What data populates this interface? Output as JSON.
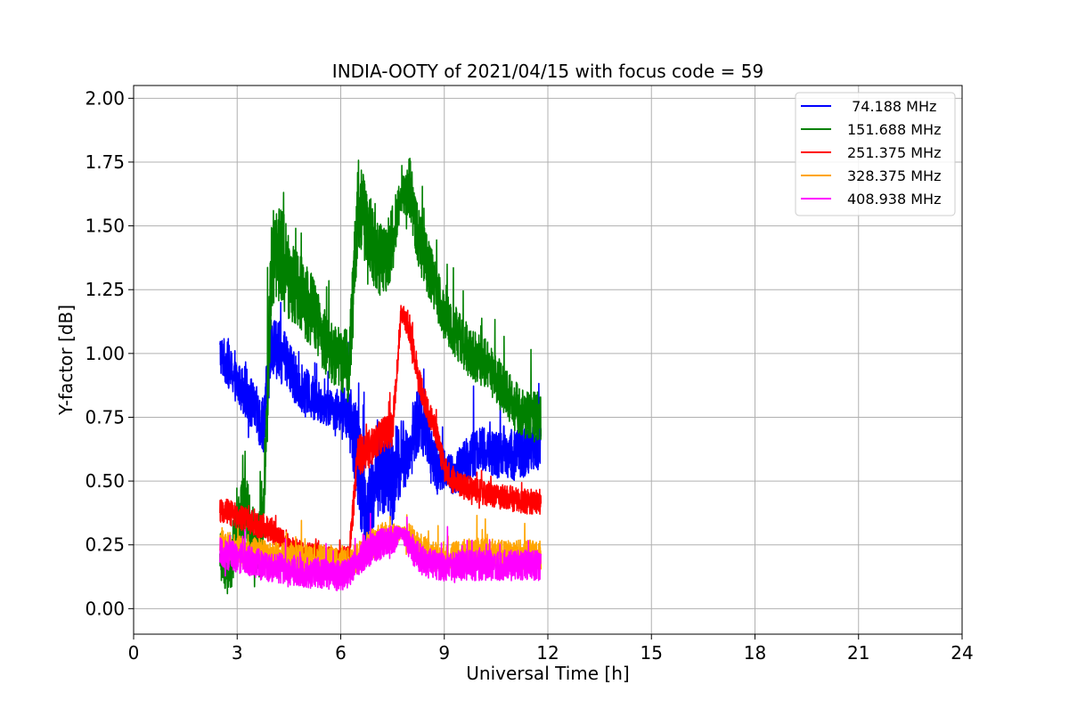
{
  "chart_data": {
    "type": "line",
    "title": "INDIA-OOTY of 2021/04/15 with focus code = 59",
    "xlabel": "Universal Time [h]",
    "ylabel": "Y-factor [dB]",
    "xlim": [
      0,
      24
    ],
    "ylim": [
      -0.1,
      2.05
    ],
    "xticks": [
      0,
      3,
      6,
      9,
      12,
      15,
      18,
      21,
      24
    ],
    "xtick_labels": [
      "0",
      "3",
      "6",
      "9",
      "12",
      "15",
      "18",
      "21",
      "24"
    ],
    "yticks": [
      0.0,
      0.25,
      0.5,
      0.75,
      1.0,
      1.25,
      1.5,
      1.75,
      2.0
    ],
    "ytick_labels": [
      "0.00",
      "0.25",
      "0.50",
      "0.75",
      "1.00",
      "1.25",
      "1.50",
      "1.75",
      "2.00"
    ],
    "grid": true,
    "legend_position": "top-right",
    "series": [
      {
        "name": " 74.188 MHz",
        "color": "#0000ff",
        "x": [
          2.5,
          2.75,
          3.0,
          3.25,
          3.5,
          3.75,
          4.0,
          4.25,
          4.5,
          4.75,
          5.0,
          5.25,
          5.5,
          5.75,
          6.0,
          6.25,
          6.5,
          6.75,
          7.0,
          7.25,
          7.5,
          7.75,
          8.0,
          8.25,
          8.5,
          8.75,
          9.0,
          9.25,
          9.5,
          9.75,
          10.0,
          10.25,
          10.5,
          10.75,
          11.0,
          11.25,
          11.5,
          11.8
        ],
        "y": [
          1.0,
          0.95,
          0.88,
          0.85,
          0.78,
          0.72,
          1.05,
          1.0,
          0.95,
          0.88,
          0.85,
          0.82,
          0.8,
          0.78,
          0.78,
          0.75,
          0.6,
          0.35,
          0.5,
          0.55,
          0.5,
          0.6,
          0.6,
          0.75,
          0.7,
          0.55,
          0.55,
          0.52,
          0.55,
          0.6,
          0.62,
          0.62,
          0.6,
          0.62,
          0.6,
          0.62,
          0.62,
          0.65
        ],
        "amp": [
          0.08,
          0.09,
          0.08,
          0.1,
          0.1,
          0.12,
          0.12,
          0.12,
          0.1,
          0.1,
          0.09,
          0.09,
          0.08,
          0.08,
          0.08,
          0.12,
          0.2,
          0.22,
          0.15,
          0.18,
          0.2,
          0.15,
          0.1,
          0.14,
          0.12,
          0.1,
          0.08,
          0.08,
          0.09,
          0.1,
          0.09,
          0.09,
          0.09,
          0.1,
          0.1,
          0.1,
          0.1,
          0.1
        ]
      },
      {
        "name": "151.688 MHz",
        "color": "#008000",
        "x": [
          2.5,
          2.75,
          3.0,
          3.25,
          3.5,
          3.75,
          4.0,
          4.25,
          4.5,
          4.75,
          5.0,
          5.25,
          5.5,
          5.75,
          6.0,
          6.25,
          6.5,
          6.75,
          7.0,
          7.25,
          7.5,
          7.75,
          8.0,
          8.25,
          8.5,
          8.75,
          9.0,
          9.25,
          9.5,
          9.75,
          10.0,
          10.25,
          10.5,
          10.75,
          11.0,
          11.25,
          11.5,
          11.8
        ],
        "y": [
          0.2,
          0.15,
          0.3,
          0.4,
          0.2,
          0.3,
          1.35,
          1.4,
          1.3,
          1.25,
          1.2,
          1.15,
          1.05,
          1.0,
          0.98,
          0.95,
          1.6,
          1.5,
          1.4,
          1.35,
          1.45,
          1.62,
          1.65,
          1.45,
          1.35,
          1.25,
          1.15,
          1.1,
          1.05,
          1.0,
          0.98,
          0.95,
          0.9,
          0.85,
          0.8,
          0.78,
          0.75,
          0.75
        ],
        "amp": [
          0.1,
          0.12,
          0.15,
          0.15,
          0.12,
          0.15,
          0.2,
          0.2,
          0.18,
          0.16,
          0.15,
          0.14,
          0.13,
          0.12,
          0.12,
          0.15,
          0.18,
          0.16,
          0.15,
          0.14,
          0.14,
          0.06,
          0.12,
          0.12,
          0.12,
          0.1,
          0.1,
          0.1,
          0.1,
          0.1,
          0.1,
          0.1,
          0.1,
          0.1,
          0.1,
          0.1,
          0.1,
          0.1
        ]
      },
      {
        "name": "251.375 MHz",
        "color": "#ff0000",
        "x": [
          2.5,
          2.75,
          3.0,
          3.25,
          3.5,
          3.75,
          4.0,
          4.25,
          4.5,
          4.75,
          5.0,
          5.25,
          5.5,
          5.75,
          6.0,
          6.25,
          6.5,
          6.75,
          7.0,
          7.25,
          7.5,
          7.75,
          8.0,
          8.25,
          8.5,
          8.75,
          9.0,
          9.25,
          9.5,
          9.75,
          10.0,
          10.25,
          10.5,
          10.75,
          11.0,
          11.25,
          11.5,
          11.8
        ],
        "y": [
          0.38,
          0.38,
          0.36,
          0.35,
          0.33,
          0.32,
          0.3,
          0.28,
          0.25,
          0.23,
          0.22,
          0.22,
          0.21,
          0.2,
          0.2,
          0.22,
          0.6,
          0.62,
          0.65,
          0.68,
          0.7,
          1.16,
          1.1,
          0.9,
          0.78,
          0.7,
          0.55,
          0.5,
          0.48,
          0.47,
          0.46,
          0.45,
          0.44,
          0.44,
          0.43,
          0.42,
          0.42,
          0.42
        ],
        "amp": [
          0.05,
          0.05,
          0.05,
          0.05,
          0.05,
          0.05,
          0.05,
          0.04,
          0.04,
          0.04,
          0.04,
          0.04,
          0.04,
          0.04,
          0.04,
          0.05,
          0.08,
          0.08,
          0.07,
          0.07,
          0.07,
          0.04,
          0.06,
          0.06,
          0.05,
          0.05,
          0.05,
          0.05,
          0.05,
          0.05,
          0.05,
          0.05,
          0.05,
          0.05,
          0.05,
          0.05,
          0.05,
          0.05
        ]
      },
      {
        "name": "328.375 MHz",
        "color": "#ffa500",
        "x": [
          2.5,
          2.75,
          3.0,
          3.25,
          3.5,
          3.75,
          4.0,
          4.25,
          4.5,
          4.75,
          5.0,
          5.25,
          5.5,
          5.75,
          6.0,
          6.25,
          6.5,
          6.75,
          7.0,
          7.25,
          7.5,
          7.75,
          8.0,
          8.25,
          8.5,
          8.75,
          9.0,
          9.25,
          9.5,
          9.75,
          10.0,
          10.25,
          10.5,
          10.75,
          11.0,
          11.25,
          11.5,
          11.8
        ],
        "y": [
          0.25,
          0.24,
          0.23,
          0.22,
          0.22,
          0.21,
          0.2,
          0.2,
          0.2,
          0.19,
          0.19,
          0.19,
          0.19,
          0.19,
          0.18,
          0.18,
          0.2,
          0.24,
          0.26,
          0.28,
          0.28,
          0.3,
          0.28,
          0.24,
          0.22,
          0.2,
          0.19,
          0.2,
          0.21,
          0.22,
          0.22,
          0.22,
          0.21,
          0.21,
          0.21,
          0.21,
          0.21,
          0.21
        ],
        "amp": [
          0.06,
          0.06,
          0.06,
          0.06,
          0.06,
          0.06,
          0.06,
          0.06,
          0.06,
          0.06,
          0.06,
          0.06,
          0.06,
          0.06,
          0.06,
          0.06,
          0.06,
          0.06,
          0.06,
          0.06,
          0.06,
          0.02,
          0.06,
          0.06,
          0.06,
          0.06,
          0.06,
          0.06,
          0.06,
          0.06,
          0.06,
          0.06,
          0.06,
          0.06,
          0.06,
          0.06,
          0.06,
          0.06
        ]
      },
      {
        "name": "408.938 MHz",
        "color": "#ff00ff",
        "x": [
          2.5,
          2.75,
          3.0,
          3.25,
          3.5,
          3.75,
          4.0,
          4.25,
          4.5,
          4.75,
          5.0,
          5.25,
          5.5,
          5.75,
          6.0,
          6.25,
          6.5,
          6.75,
          7.0,
          7.25,
          7.5,
          7.75,
          8.0,
          8.25,
          8.5,
          8.75,
          9.0,
          9.25,
          9.5,
          9.75,
          10.0,
          10.25,
          10.5,
          10.75,
          11.0,
          11.25,
          11.5,
          11.8
        ],
        "y": [
          0.22,
          0.21,
          0.2,
          0.19,
          0.18,
          0.17,
          0.16,
          0.16,
          0.15,
          0.15,
          0.14,
          0.14,
          0.14,
          0.13,
          0.13,
          0.14,
          0.18,
          0.22,
          0.24,
          0.26,
          0.27,
          0.3,
          0.25,
          0.2,
          0.18,
          0.17,
          0.16,
          0.16,
          0.17,
          0.17,
          0.17,
          0.17,
          0.17,
          0.17,
          0.17,
          0.17,
          0.17,
          0.17
        ],
        "amp": [
          0.06,
          0.06,
          0.06,
          0.06,
          0.06,
          0.06,
          0.06,
          0.06,
          0.06,
          0.06,
          0.06,
          0.06,
          0.06,
          0.06,
          0.06,
          0.06,
          0.06,
          0.06,
          0.06,
          0.06,
          0.06,
          0.02,
          0.06,
          0.06,
          0.06,
          0.06,
          0.06,
          0.06,
          0.06,
          0.06,
          0.06,
          0.06,
          0.06,
          0.06,
          0.06,
          0.06,
          0.06,
          0.06
        ]
      }
    ]
  }
}
